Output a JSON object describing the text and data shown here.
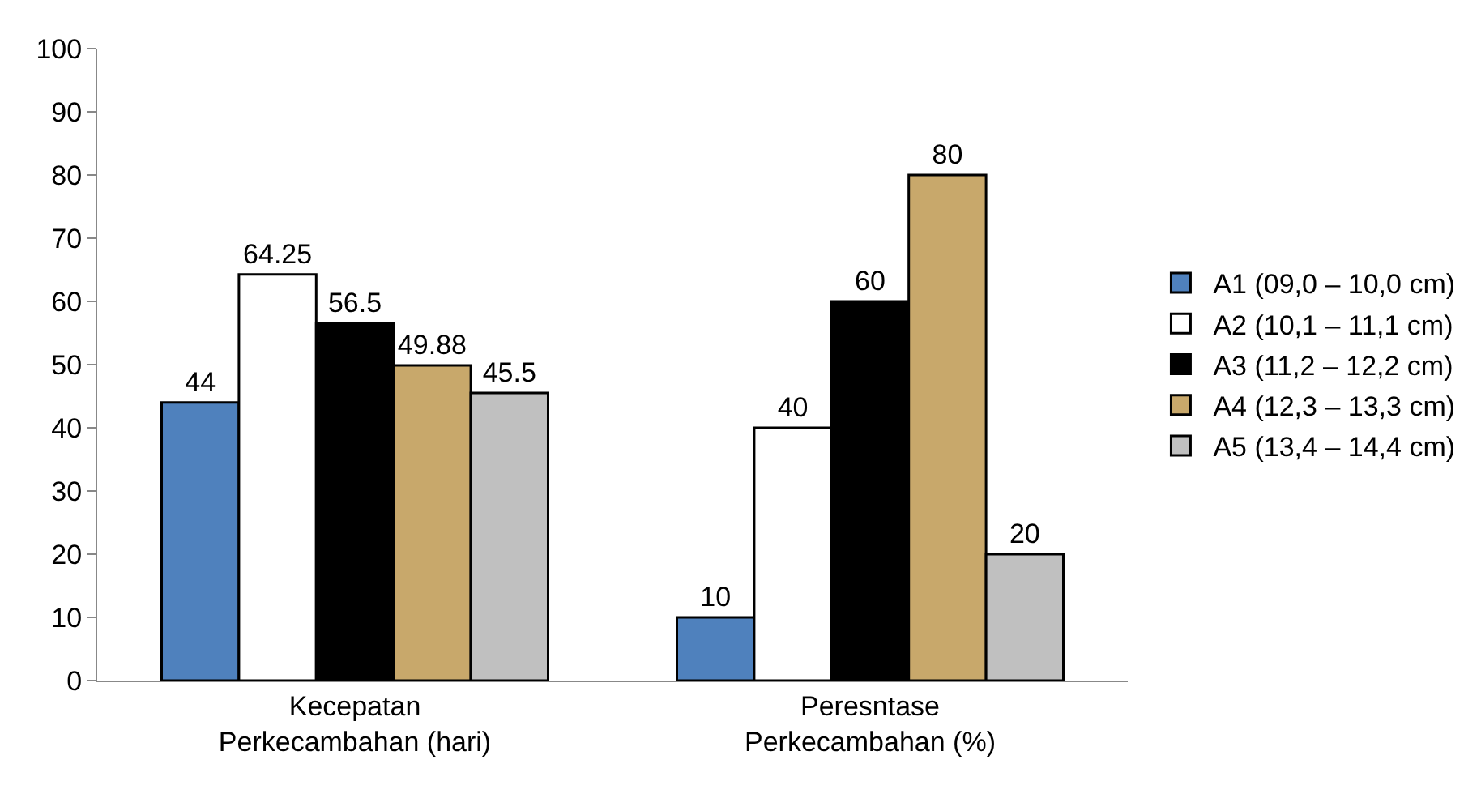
{
  "chart_data": {
    "type": "bar",
    "categories": [
      "Kecepatan Perkecambahan (hari)",
      "Peresntase Perkecambahan (%)"
    ],
    "series": [
      {
        "name": "A1 (09,0 – 10,0 cm)",
        "color": "#4f81bd",
        "values": [
          44,
          10
        ]
      },
      {
        "name": "A2 (10,1 – 11,1 cm)",
        "color": "#ffffff",
        "values": [
          64.25,
          40
        ]
      },
      {
        "name": "A3 (11,2 – 12,2 cm)",
        "color": "#000000",
        "values": [
          56.5,
          60
        ]
      },
      {
        "name": "A4 (12,3 – 13,3 cm)",
        "color": "#c8a86b",
        "values": [
          49.88,
          80
        ]
      },
      {
        "name": "A5 (13,4 – 14,4 cm)",
        "color": "#c0c0c0",
        "values": [
          45.5,
          20
        ]
      }
    ],
    "ylim": [
      0,
      100
    ],
    "yticks": [
      0,
      10,
      20,
      30,
      40,
      50,
      60,
      70,
      80,
      90,
      100
    ],
    "data_labels": true,
    "legend": "right"
  }
}
